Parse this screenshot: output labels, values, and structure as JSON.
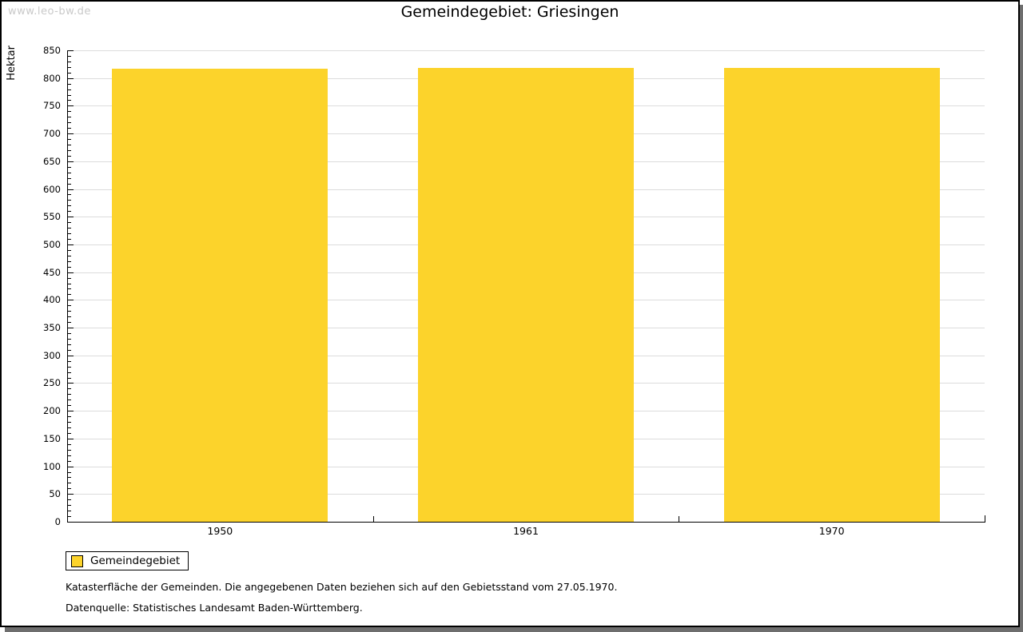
{
  "watermark": "www.leo-bw.de",
  "title": "Gemeindegebiet: Griesingen",
  "chart_data": {
    "type": "bar",
    "title": "Gemeindegebiet: Griesingen",
    "categories": [
      "1950",
      "1961",
      "1970"
    ],
    "series": [
      {
        "name": "Gemeindegebiet",
        "values": [
          817,
          818,
          818
        ],
        "color": "#FCD32B"
      }
    ],
    "xlabel": "",
    "ylabel": "Hektar",
    "ylim": [
      0,
      850
    ],
    "ytick_major": 50,
    "ytick_minor": 10,
    "ytick_labels": [
      "0",
      "50",
      "100",
      "150",
      "200",
      "250",
      "300",
      "350",
      "400",
      "450",
      "500",
      "550",
      "600",
      "650",
      "700",
      "750",
      "800",
      "850"
    ],
    "grid": true,
    "gridline_color": "#dcdcdc",
    "legend_position": "bottom-left"
  },
  "legend": {
    "items": [
      {
        "label": "Gemeindegebiet",
        "color": "#FCD32B"
      }
    ]
  },
  "footer": {
    "line1": "Katasterfläche der Gemeinden. Die angegebenen Daten beziehen sich auf den Gebietsstand vom 27.05.1970.",
    "line2": "Datenquelle: Statistisches Landesamt Baden-Württemberg."
  },
  "colors": {
    "bar": "#FCD32B",
    "gridline": "#dcdcdc",
    "axis": "#000000",
    "watermark": "#c9c9c9",
    "page_border": "#000000",
    "shadow": "#6e6e6e",
    "background": "#ffffff"
  }
}
